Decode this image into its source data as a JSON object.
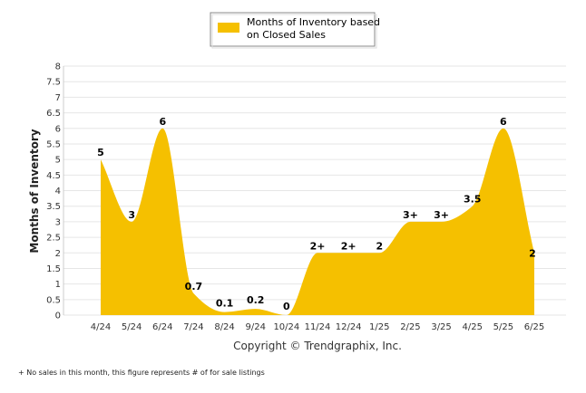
{
  "chart_data": {
    "type": "area",
    "legend": "Months of Inventory based on Closed Sales",
    "legend_lines": [
      "Months of Inventory based",
      "on Closed Sales"
    ],
    "legend_placement": "top-center",
    "ylabel": "Months of Inventory",
    "ylim": [
      0,
      8
    ],
    "yticks": [
      "0",
      "0.5",
      "1",
      "1.5",
      "2",
      "2.5",
      "3",
      "3.5",
      "4",
      "4.5",
      "5",
      "5.5",
      "6",
      "6.5",
      "7",
      "7.5",
      "8"
    ],
    "grid": true,
    "categories": [
      "4/24",
      "5/24",
      "6/24",
      "7/24",
      "8/24",
      "9/24",
      "10/24",
      "11/24",
      "12/24",
      "1/25",
      "2/25",
      "3/25",
      "4/25",
      "5/25",
      "6/25"
    ],
    "values": [
      5,
      3,
      6,
      0.7,
      0.1,
      0.2,
      0,
      2,
      2,
      2,
      3,
      3,
      3.5,
      6,
      2
    ],
    "labels": [
      "5",
      "3",
      "6",
      "0.7",
      "0.1",
      "0.2",
      "0",
      "2+",
      "2+",
      "2",
      "3+",
      "3+",
      "3.5",
      "6",
      "2"
    ],
    "color": "#F5C000"
  },
  "copyright": "Copyright © Trendgraphix, Inc.",
  "footnote": "+ No sales in this month, this figure represents # of for sale listings"
}
